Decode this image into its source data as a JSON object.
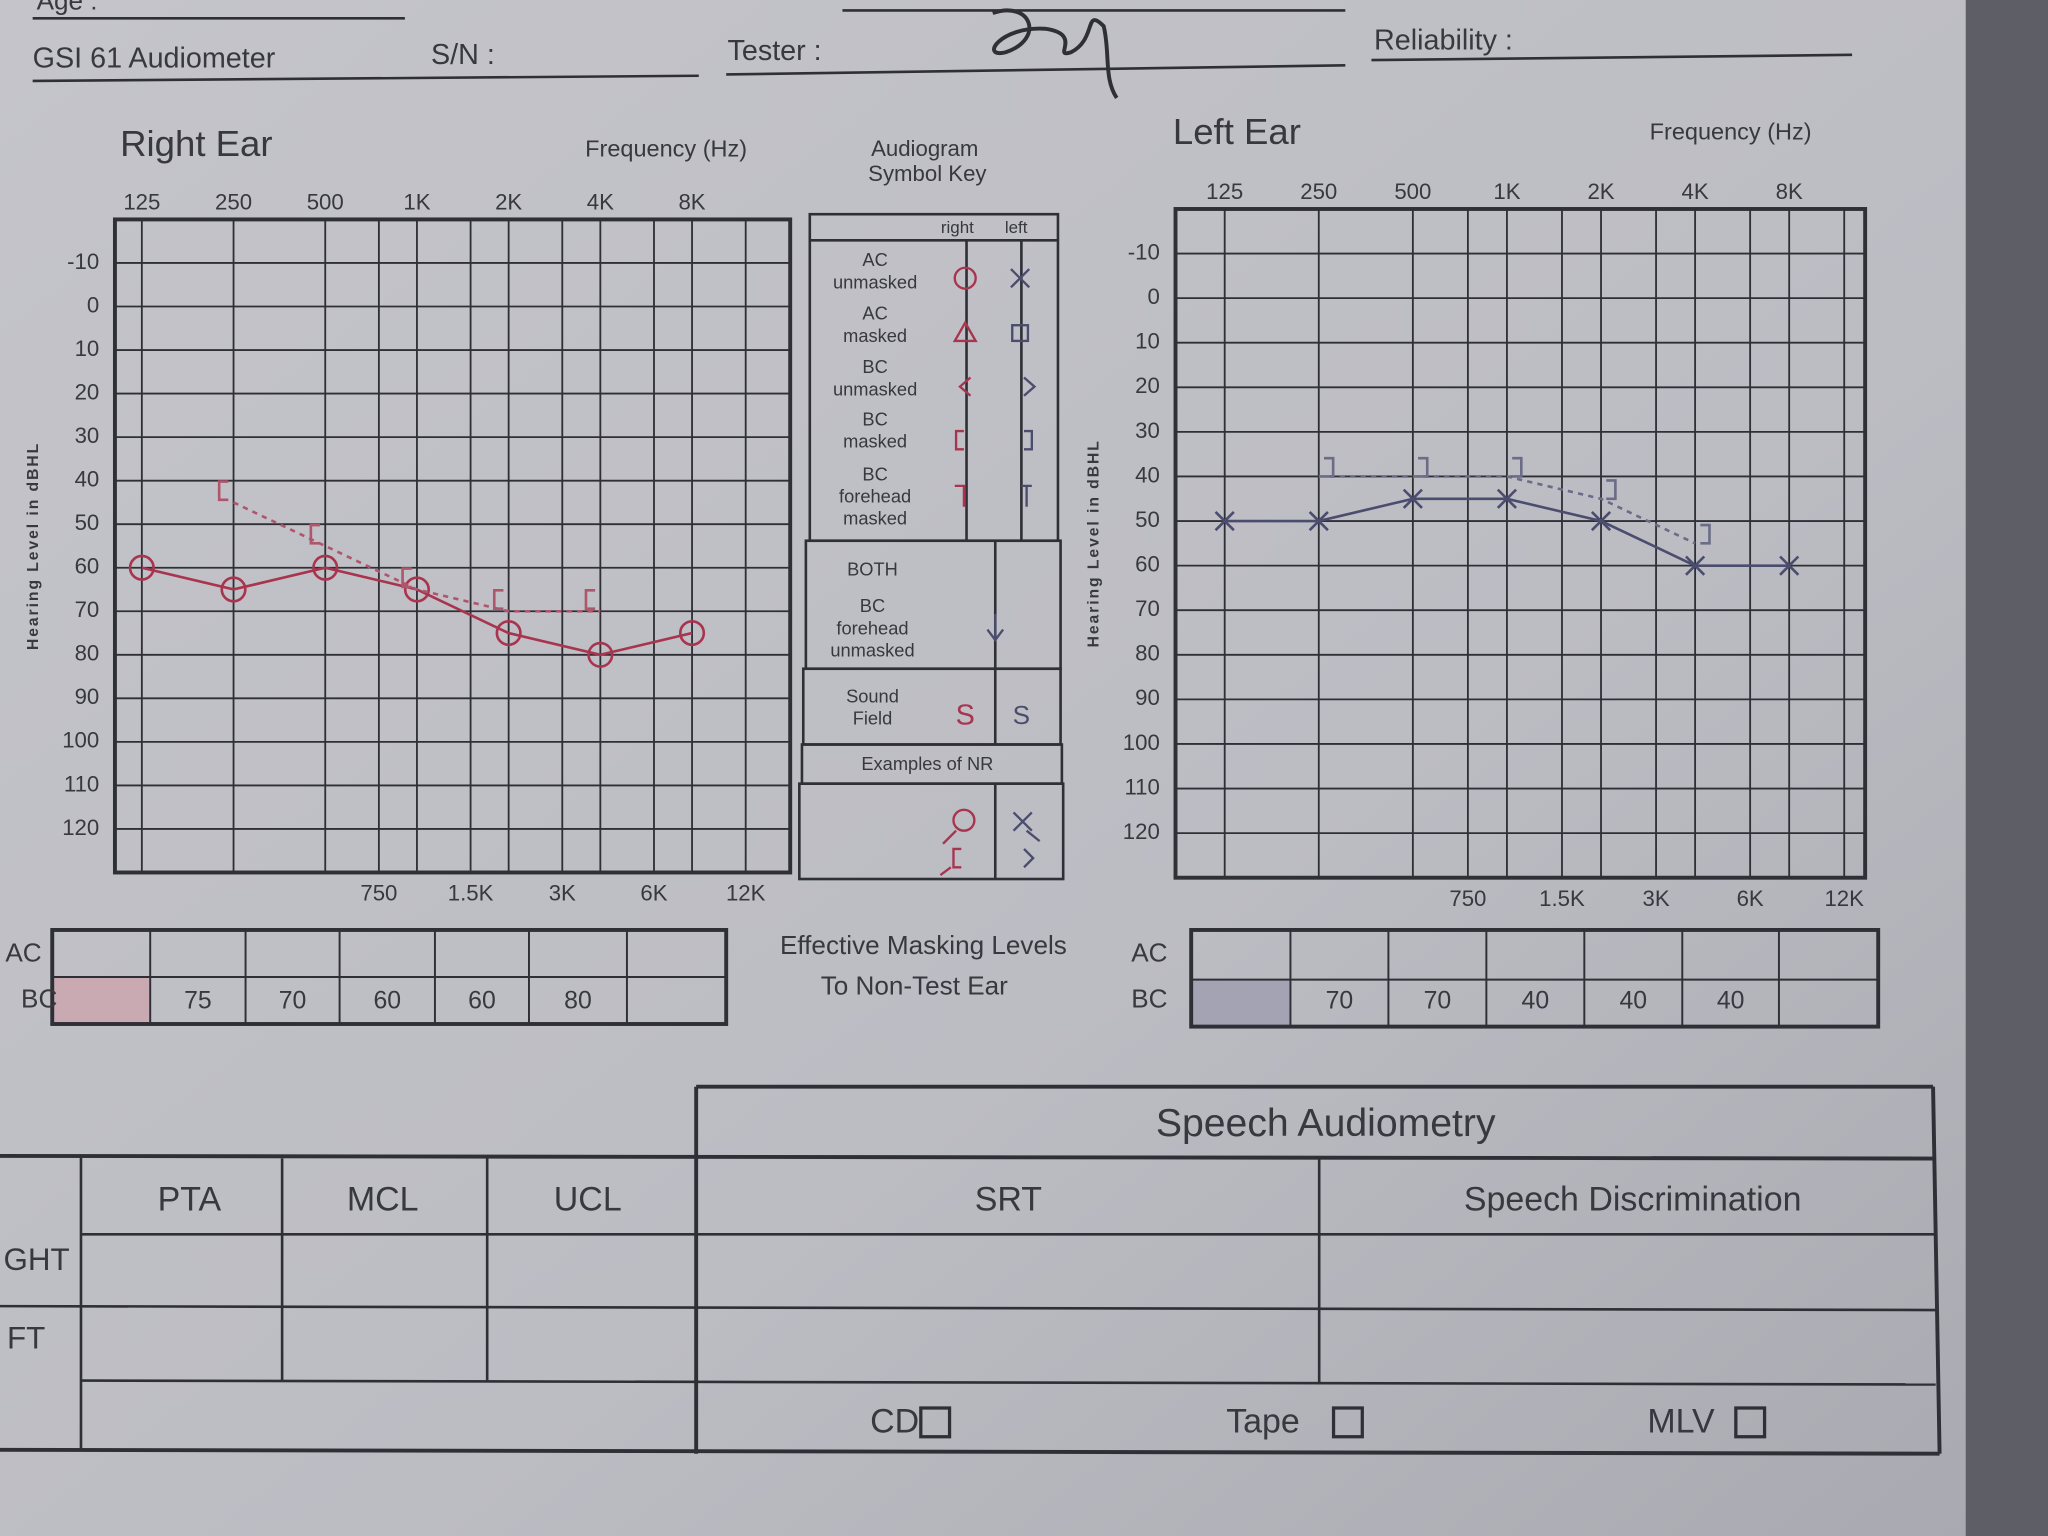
{
  "header": {
    "age_label": "Age :",
    "device": "GSI 61 Audiometer",
    "serial_label": "S/N :",
    "tester_label": "Tester :",
    "reliability_label": "Reliability :"
  },
  "chart_data": [
    {
      "type": "line",
      "title": "Right Ear",
      "x_label": "Frequency (Hz)",
      "y_label": "Hearing Level in dBHL",
      "x": [
        125,
        250,
        500,
        1000,
        2000,
        4000,
        8000
      ],
      "xscale": "log",
      "xlim": [
        102,
        16800
      ],
      "ylim": [
        -20,
        130
      ],
      "y_inverted": true,
      "grid": true,
      "xticks": [
        125,
        250,
        500,
        {
          "value": 1000,
          "label": "1K"
        },
        {
          "value": 2000,
          "label": "2K"
        },
        {
          "value": 4000,
          "label": "4K"
        },
        {
          "value": 8000,
          "label": "8K"
        }
      ],
      "xticks_bottom": [
        750,
        {
          "value": 1500,
          "label": "1.5K"
        },
        {
          "value": 3000,
          "label": "3K"
        },
        {
          "value": 6000,
          "label": "6K"
        },
        {
          "value": 12000,
          "label": "12K"
        }
      ],
      "yticks": [
        -10,
        0,
        10,
        20,
        30,
        40,
        50,
        60,
        70,
        80,
        90,
        100,
        110,
        120
      ],
      "series": [
        {
          "marker": "circle",
          "line_style": "solid",
          "color": "#a8344e",
          "values": [
            60,
            65,
            60,
            65,
            75,
            80,
            75
          ]
        },
        {
          "marker": "bracket-left",
          "line_style": "dashed",
          "color": "#b0566c",
          "values": [
            null,
            45,
            55,
            65,
            70,
            70,
            null
          ]
        }
      ]
    },
    {
      "type": "line",
      "title": "Left Ear",
      "x_label": "Frequency (Hz)",
      "y_label": "Hearing Level in dBHL",
      "x": [
        125,
        250,
        500,
        1000,
        2000,
        4000,
        8000
      ],
      "xscale": "log",
      "xlim": [
        87,
        14000
      ],
      "ylim": [
        -20,
        130
      ],
      "y_inverted": true,
      "grid": true,
      "xticks": [
        125,
        250,
        500,
        {
          "value": 1000,
          "label": "1K"
        },
        {
          "value": 2000,
          "label": "2K"
        },
        {
          "value": 4000,
          "label": "4K"
        },
        {
          "value": 8000,
          "label": "8K"
        }
      ],
      "xticks_bottom": [
        750,
        {
          "value": 1500,
          "label": "1.5K"
        },
        {
          "value": 3000,
          "label": "3K"
        },
        {
          "value": 6000,
          "label": "6K"
        },
        {
          "value": 12000,
          "label": "12K"
        }
      ],
      "yticks": [
        -10,
        0,
        10,
        20,
        30,
        40,
        50,
        60,
        70,
        80,
        90,
        100,
        110,
        120
      ],
      "series": [
        {
          "marker": "x",
          "line_style": "solid",
          "color": "#4b4d6e",
          "values": [
            50,
            50,
            45,
            45,
            50,
            60,
            60
          ]
        },
        {
          "marker": "bracket-right",
          "line_style": "dashed",
          "color": "#6a6c88",
          "values": [
            null,
            40,
            40,
            40,
            45,
            55,
            null
          ]
        }
      ]
    }
  ],
  "symbol_key": {
    "title": [
      "Audiogram",
      "Symbol Key"
    ],
    "col_right": "right",
    "col_left": "left",
    "rows": [
      [
        "AC",
        "unmasked"
      ],
      [
        "AC",
        "masked"
      ],
      [
        "BC",
        "unmasked"
      ],
      [
        "BC",
        "masked"
      ],
      [
        "BC",
        "forehead",
        "masked"
      ]
    ],
    "both": "BOTH",
    "both_row": [
      "BC",
      "forehead",
      "unmasked"
    ],
    "sound_field": [
      "Sound",
      "Field"
    ],
    "sound_field_symbols": [
      "S",
      "S"
    ],
    "nr_label": "Examples of NR"
  },
  "masking": {
    "title": [
      "Effective Masking Levels",
      "To Non-Test Ear"
    ],
    "right": {
      "row_labels": [
        "AC",
        "BC"
      ],
      "bc_values": [
        "75",
        "70",
        "60",
        "60",
        "80"
      ]
    },
    "left": {
      "row_labels": [
        "AC",
        "BC"
      ],
      "bc_values": [
        "70",
        "70",
        "40",
        "40",
        "40"
      ]
    }
  },
  "speech": {
    "title": "Speech Audiometry",
    "columns": [
      "PTA",
      "MCL",
      "UCL",
      "SRT",
      "Speech Discrimination"
    ],
    "rows": [
      "GHT",
      "FT"
    ],
    "materials": [
      "CD",
      "Tape",
      "MLV"
    ]
  }
}
